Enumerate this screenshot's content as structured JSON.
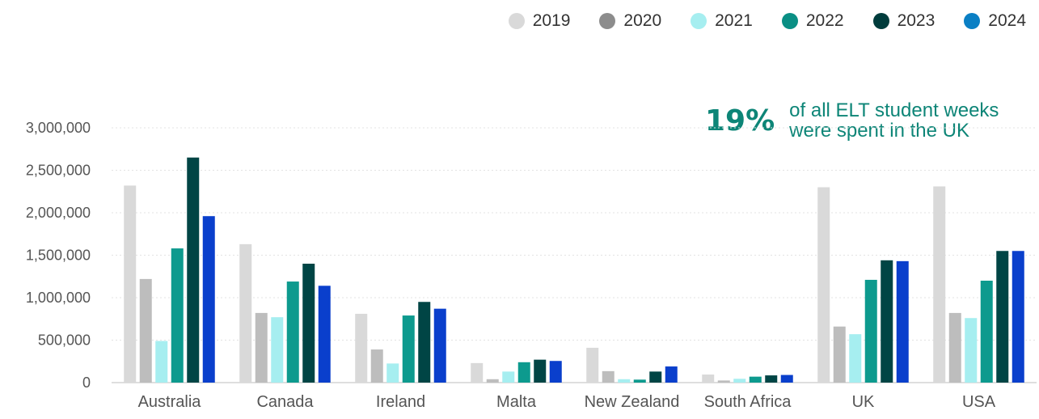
{
  "legend": [
    {
      "label": "2019",
      "color": "#d9d9d9"
    },
    {
      "label": "2020",
      "color": "#8c8c8c"
    },
    {
      "label": "2021",
      "color": "#a6eef0"
    },
    {
      "label": "2022",
      "color": "#0a8f84"
    },
    {
      "label": "2023",
      "color": "#003c3c"
    },
    {
      "label": "2024",
      "color": "#0a7fc4"
    }
  ],
  "callout": {
    "percent": "19%",
    "line1": "of all ELT student weeks",
    "line2": "were spent in the UK"
  },
  "chart_data": {
    "type": "bar",
    "categories": [
      "Australia",
      "Canada",
      "Ireland",
      "Malta",
      "New Zealand",
      "South Africa",
      "UK",
      "USA"
    ],
    "ylim": [
      0,
      3000000
    ],
    "yticks": [
      0,
      500000,
      1000000,
      1500000,
      2000000,
      2500000,
      3000000
    ],
    "ytick_labels": [
      "0",
      "500,000",
      "1,000,000",
      "1,500,000",
      "2,000,000",
      "2,500,000",
      "3,000,000"
    ],
    "grid": true,
    "legend_position": "top-right",
    "series": [
      {
        "name": "2019",
        "color": "#d9d9d9",
        "values": [
          2320000,
          1630000,
          810000,
          230000,
          410000,
          95000,
          2300000,
          2310000
        ]
      },
      {
        "name": "2020",
        "color": "#bdbdbd",
        "values": [
          1220000,
          820000,
          390000,
          40000,
          135000,
          25000,
          660000,
          820000
        ]
      },
      {
        "name": "2021",
        "color": "#a6eef0",
        "values": [
          490000,
          770000,
          225000,
          130000,
          40000,
          45000,
          570000,
          760000
        ]
      },
      {
        "name": "2022",
        "color": "#0d9a8e",
        "values": [
          1580000,
          1190000,
          790000,
          240000,
          35000,
          70000,
          1210000,
          1200000
        ]
      },
      {
        "name": "2023",
        "color": "#004545",
        "values": [
          2650000,
          1400000,
          950000,
          270000,
          130000,
          85000,
          1440000,
          1550000
        ]
      },
      {
        "name": "2024",
        "color": "#0a3fcc",
        "values": [
          1960000,
          1140000,
          870000,
          255000,
          190000,
          90000,
          1430000,
          1550000
        ]
      }
    ]
  }
}
